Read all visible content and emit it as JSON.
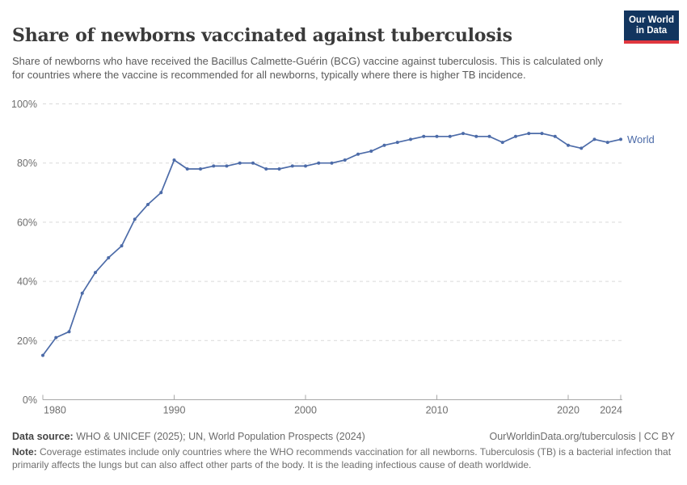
{
  "header": {
    "title": "Share of newborns vaccinated against tuberculosis",
    "subtitle": "Share of newborns who have received the Bacillus Calmette-Guérin (BCG) vaccine against tuberculosis. This is calculated only for countries where the vaccine is recommended for all newborns, typically where there is higher TB incidence.",
    "logo": {
      "line1": "Our World",
      "line2": "in Data",
      "bg_color": "#12355f",
      "accent_color": "#e0373f"
    }
  },
  "chart_data": {
    "type": "line",
    "title": "Share of newborns vaccinated against tuberculosis",
    "xlabel": "",
    "ylabel": "",
    "xlim": [
      1980,
      2024
    ],
    "ylim": [
      0,
      100
    ],
    "grid": "horizontal-dashed",
    "legend_position": "end-of-line-label",
    "ytick_values": [
      0,
      20,
      40,
      60,
      80,
      100
    ],
    "ytick_labels": [
      "0%",
      "20%",
      "40%",
      "60%",
      "80%",
      "100%"
    ],
    "xtick_values": [
      1980,
      1990,
      2000,
      2010,
      2020,
      2024
    ],
    "xtick_labels": [
      "1980",
      "1990",
      "2000",
      "2010",
      "2020",
      "2024"
    ],
    "x": [
      1980,
      1981,
      1982,
      1983,
      1984,
      1985,
      1986,
      1987,
      1988,
      1989,
      1990,
      1991,
      1992,
      1993,
      1994,
      1995,
      1996,
      1997,
      1998,
      1999,
      2000,
      2001,
      2002,
      2003,
      2004,
      2005,
      2006,
      2007,
      2008,
      2009,
      2010,
      2011,
      2012,
      2013,
      2014,
      2015,
      2016,
      2017,
      2018,
      2019,
      2020,
      2021,
      2022,
      2023,
      2024
    ],
    "series": [
      {
        "name": "World",
        "color": "#4c6ba8",
        "values": [
          15,
          21,
          23,
          36,
          43,
          48,
          52,
          61,
          66,
          70,
          81,
          78,
          78,
          79,
          79,
          80,
          80,
          78,
          78,
          79,
          79,
          80,
          80,
          81,
          83,
          84,
          86,
          87,
          88,
          89,
          89,
          89,
          90,
          89,
          89,
          87,
          89,
          90,
          90,
          89,
          86,
          85,
          88,
          87,
          88
        ]
      }
    ],
    "colors": {
      "gridline": "#d9d9d9",
      "axis": "#a8a8a8",
      "tick_label": "#6e6e6e"
    }
  },
  "footer": {
    "datasource_label": "Data source:",
    "datasource_value": " WHO & UNICEF (2025); UN, World Population Prospects (2024)",
    "link": "OurWorldinData.org/tuberculosis | CC BY",
    "note_label": "Note:",
    "note_value": " Coverage estimates include only countries where the WHO recommends vaccination for all newborns. Tuberculosis (TB) is a bacterial infection that primarily affects the lungs but can also affect other parts of the body. It is the leading infectious cause of death worldwide."
  }
}
